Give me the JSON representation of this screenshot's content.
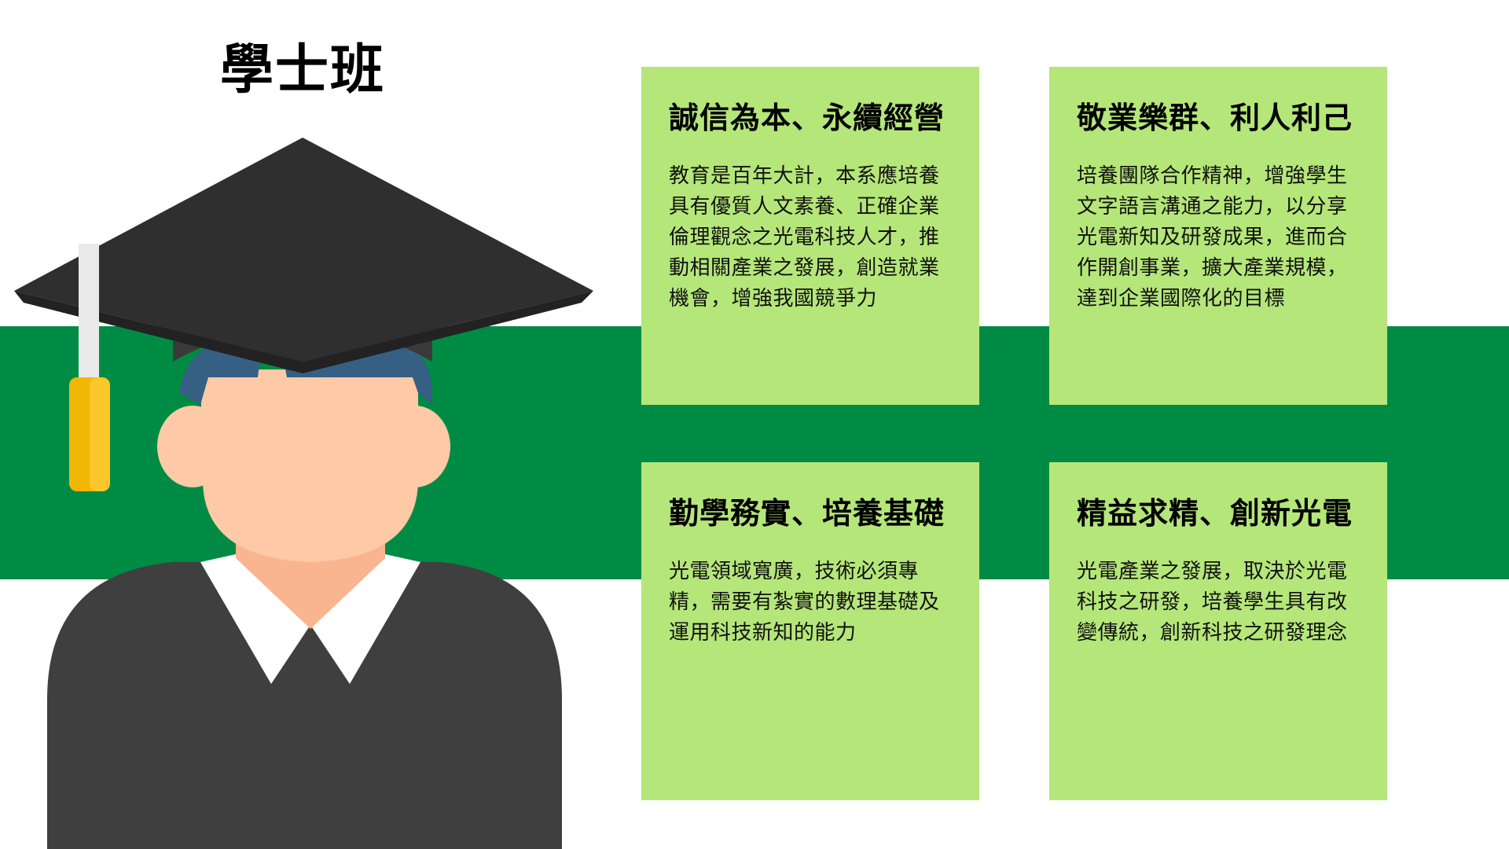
{
  "page": {
    "title": "學士班"
  },
  "colors": {
    "band": "#008b45",
    "card": "#b5e67a",
    "cap": "#3a3a3a",
    "skin": "#fdc9a6",
    "hair": "#356083",
    "tassel": "#f2b705",
    "gown": "#3f3f3f",
    "collar": "#ffffff"
  },
  "avatar": {
    "icon": "graduate-student-icon"
  },
  "cards": [
    {
      "title": "誠信為本、永續經營",
      "body": "教育是百年大計，本系應培養具有優質人文素養、正確企業倫理觀念之光電科技人才，推動相關產業之發展，創造就業機會，增強我國競爭力"
    },
    {
      "title": "敬業樂群、利人利己",
      "body": "培養團隊合作精神，增強學生文字語言溝通之能力，以分享光電新知及研發成果，進而合作開創事業，擴大產業規模，達到企業國際化的目標"
    },
    {
      "title": "勤學務實、培養基礎",
      "body": "光電領域寬廣，技術必須專精，需要有紮實的數理基礎及運用科技新知的能力"
    },
    {
      "title": "精益求精、創新光電",
      "body": "光電產業之發展，取決於光電科技之研發，培養學生具有改變傳統，創新科技之研發理念"
    }
  ]
}
